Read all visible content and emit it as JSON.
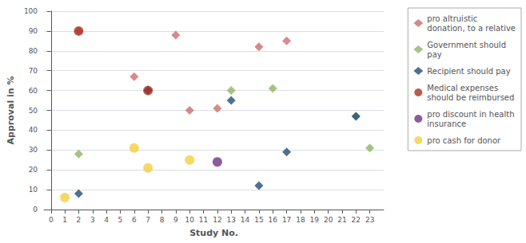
{
  "chart_data": {
    "type": "scatter",
    "xlabel": "Study No.",
    "ylabel": "Approval in %",
    "xlim": [
      -0.5,
      24
    ],
    "xticks": [
      0,
      1,
      2,
      3,
      4,
      5,
      6,
      7,
      8,
      9,
      10,
      11,
      12,
      13,
      14,
      15,
      16,
      17,
      18,
      19,
      20,
      21,
      22,
      23
    ],
    "ylim": [
      0,
      100
    ],
    "yticks": [
      0,
      10,
      20,
      30,
      40,
      50,
      60,
      70,
      80,
      90,
      100
    ],
    "grid": true,
    "legend": "right",
    "series": [
      {
        "name": "pro altruistic\ndonation, to a relative",
        "color": "#CD6D6D",
        "marker": "diamond",
        "x": [
          2,
          6,
          7,
          9,
          10,
          12,
          15,
          17
        ],
        "values": [
          90,
          67,
          60,
          88,
          50,
          51,
          82,
          85
        ]
      },
      {
        "name": "Government should\npay",
        "color": "#8DB564",
        "marker": "diamond",
        "x": [
          2,
          13,
          16,
          22,
          23
        ],
        "values": [
          28,
          60,
          61,
          47,
          31
        ]
      },
      {
        "name": "Recipient should pay",
        "color": "#1F4E79",
        "marker": "diamond",
        "x": [
          2,
          7,
          13,
          15,
          17,
          22
        ],
        "values": [
          8,
          60,
          55,
          12,
          29,
          47
        ]
      },
      {
        "name": "Medical expenses\nshould be reimbursed",
        "color": "#A93226",
        "marker": "circle",
        "x": [
          2,
          7
        ],
        "values": [
          90,
          60
        ]
      },
      {
        "name": "pro discount in health\ninsurance",
        "color": "#6C3483",
        "marker": "circle",
        "x": [
          12
        ],
        "values": [
          24
        ]
      },
      {
        "name": "pro cash for donor",
        "color": "#F4D03F",
        "marker": "circle",
        "x": [
          1,
          6,
          7,
          10
        ],
        "values": [
          6,
          31,
          21,
          25
        ]
      }
    ]
  }
}
